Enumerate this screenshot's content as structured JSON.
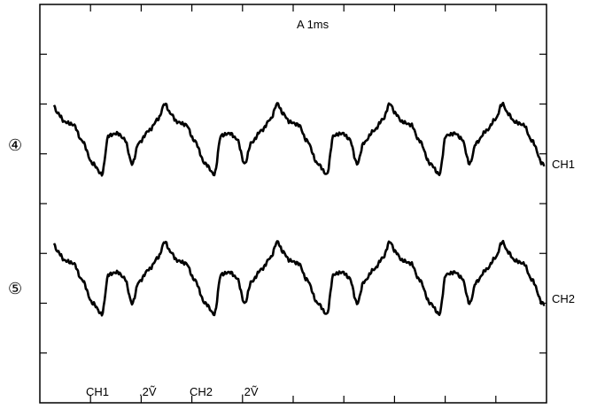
{
  "chart_data": {
    "type": "line",
    "timebase_label": "A 1ms",
    "channel_settings": [
      {
        "channel": "CH1",
        "scale": ".2Ṽ"
      },
      {
        "channel": "CH2",
        "scale": ".2Ṽ"
      }
    ],
    "grid": "major divisions with minor tick marks along the frame edges",
    "traces": [
      {
        "marker": "④",
        "label": "CH1",
        "waveform": "periodic, about 4.5 cycles across the screen"
      },
      {
        "marker": "⑤",
        "label": "CH2",
        "waveform": "periodic, about 4.5 cycles across the screen"
      }
    ]
  }
}
